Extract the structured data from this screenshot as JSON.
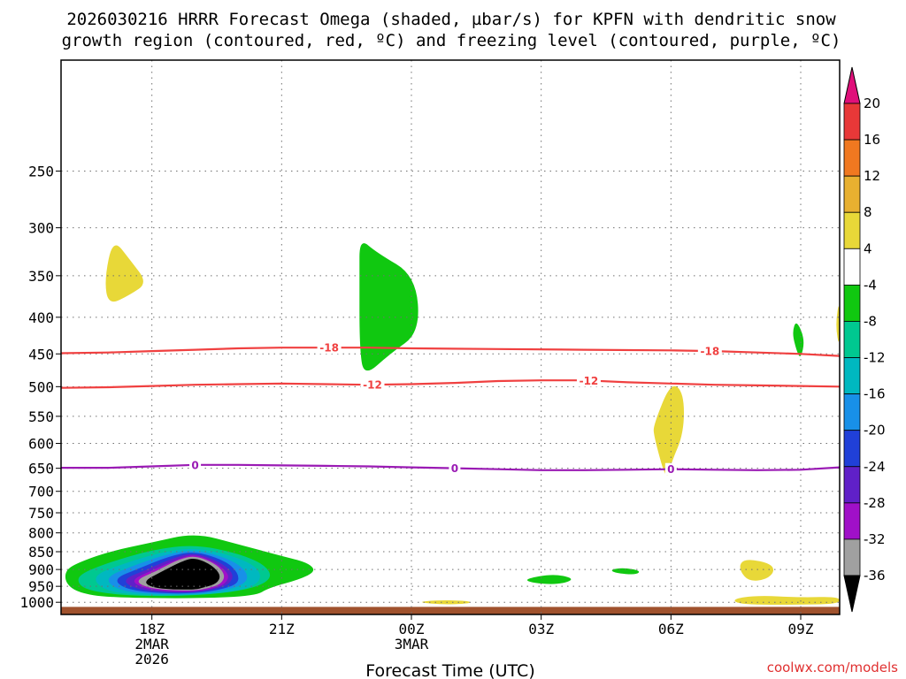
{
  "chart_data": {
    "type": "time-height cross section",
    "title_lines": [
      "2026030216 HRRR Forecast Omega (shaded, µbar/s) for KPFN with dendritic snow",
      "growth region (contoured, red, ºC) and freezing level (contoured, purple, ºC)"
    ],
    "xlabel": "Forecast Time (UTC)",
    "credit": "coolwx.com/models",
    "x_range_hours": [
      15.9,
      33.9
    ],
    "x_ticks": [
      {
        "hour": 18,
        "lines": [
          "18Z",
          "2MAR",
          "2026"
        ]
      },
      {
        "hour": 21,
        "lines": [
          "21Z"
        ]
      },
      {
        "hour": 24,
        "lines": [
          "00Z",
          "3MAR"
        ]
      },
      {
        "hour": 27,
        "lines": [
          "03Z"
        ]
      },
      {
        "hour": 30,
        "lines": [
          "06Z"
        ]
      },
      {
        "hour": 33,
        "lines": [
          "09Z"
        ]
      }
    ],
    "y_scale": "log",
    "y_range_hpa": [
      1040,
      175
    ],
    "y_ticks": [
      "250",
      "300",
      "350",
      "400",
      "450",
      "500",
      "550",
      "600",
      "650",
      "700",
      "750",
      "800",
      "850",
      "900",
      "950",
      "1000"
    ],
    "grid": true,
    "surface_pressure_hpa": 1015,
    "surface_color": "#a0522d",
    "contours": [
      {
        "name": "dendritic-18",
        "label": "-18",
        "color": "#f04040",
        "points": [
          [
            15.9,
            449
          ],
          [
            17,
            448
          ],
          [
            18,
            446
          ],
          [
            19,
            444
          ],
          [
            20,
            442
          ],
          [
            21,
            441
          ],
          [
            22,
            441
          ],
          [
            23,
            441
          ],
          [
            24,
            442
          ],
          [
            26,
            443
          ],
          [
            28,
            444
          ],
          [
            30,
            445
          ],
          [
            31,
            446
          ],
          [
            32,
            448
          ],
          [
            33,
            450
          ],
          [
            33.9,
            453
          ]
        ],
        "label_hours": [
          22.1,
          30.9
        ]
      },
      {
        "name": "dendritic-12",
        "label": "-12",
        "color": "#f04040",
        "points": [
          [
            15.9,
            502
          ],
          [
            17,
            501
          ],
          [
            18,
            499
          ],
          [
            19,
            497
          ],
          [
            20,
            496
          ],
          [
            21,
            495
          ],
          [
            22,
            496
          ],
          [
            23,
            497
          ],
          [
            24,
            496
          ],
          [
            25,
            494
          ],
          [
            26,
            491
          ],
          [
            27,
            490
          ],
          [
            28,
            490
          ],
          [
            29,
            493
          ],
          [
            30,
            495
          ],
          [
            31,
            497
          ],
          [
            32,
            498
          ],
          [
            33,
            499
          ],
          [
            33.9,
            500
          ]
        ],
        "label_hours": [
          23.1,
          28.1
        ]
      },
      {
        "name": "freezing-level-0",
        "label": "0",
        "color": "#9a1ab4",
        "points": [
          [
            15.9,
            649
          ],
          [
            17,
            649
          ],
          [
            18,
            646
          ],
          [
            19,
            643
          ],
          [
            20,
            643
          ],
          [
            21,
            644
          ],
          [
            22,
            645
          ],
          [
            23,
            646
          ],
          [
            24,
            648
          ],
          [
            25,
            650
          ],
          [
            26,
            652
          ],
          [
            27,
            654
          ],
          [
            28,
            654
          ],
          [
            29,
            653
          ],
          [
            30,
            652
          ],
          [
            31,
            653
          ],
          [
            32,
            654
          ],
          [
            33,
            653
          ],
          [
            33.9,
            648
          ]
        ],
        "label_hours": [
          19.0,
          25.0,
          30.0
        ]
      }
    ],
    "colorbar": {
      "labels": [
        "20",
        "16",
        "12",
        "8",
        "4",
        "-4",
        "-8",
        "-12",
        "-16",
        "-20",
        "-24",
        "-28",
        "-32",
        "-36"
      ],
      "bins": [
        {
          "range": [
            16,
            20
          ],
          "color": "#e83838"
        },
        {
          "range": [
            12,
            16
          ],
          "color": "#f07820"
        },
        {
          "range": [
            8,
            12
          ],
          "color": "#e8b030"
        },
        {
          "range": [
            4,
            8
          ],
          "color": "#e8d838"
        },
        {
          "range": [
            -4,
            4
          ],
          "color": "#ffffff"
        },
        {
          "range": [
            -8,
            -4
          ],
          "color": "#10c810"
        },
        {
          "range": [
            -12,
            -8
          ],
          "color": "#00c890"
        },
        {
          "range": [
            -16,
            -12
          ],
          "color": "#00b8c0"
        },
        {
          "range": [
            -20,
            -16
          ],
          "color": "#1890e8"
        },
        {
          "range": [
            -24,
            -20
          ],
          "color": "#2040d8"
        },
        {
          "range": [
            -28,
            -24
          ],
          "color": "#6020c8"
        },
        {
          "range": [
            -32,
            -28
          ],
          "color": "#a010c8"
        },
        {
          "range": [
            -36,
            -32
          ],
          "color": "#a0a0a0"
        }
      ],
      "above_color": "#e0107a",
      "below_color": "#000000"
    },
    "omega_regions": [
      {
        "name": "omega-yellow-350",
        "color": "#e8d838",
        "points": [
          [
            17.1,
            310
          ],
          [
            17.5,
            333
          ],
          [
            17.9,
            358
          ],
          [
            17.5,
            372
          ],
          [
            17.0,
            385
          ],
          [
            16.9,
            355
          ]
        ]
      },
      {
        "name": "omega-green-400",
        "color": "#10c810",
        "points": [
          [
            22.8,
            310
          ],
          [
            23.2,
            325
          ],
          [
            24.1,
            350
          ],
          [
            24.2,
            420
          ],
          [
            23.5,
            450
          ],
          [
            22.9,
            485
          ],
          [
            22.8,
            440
          ],
          [
            22.8,
            350
          ]
        ]
      },
      {
        "name": "omega-green-420-right",
        "color": "#10c810",
        "points": [
          [
            32.9,
            403
          ],
          [
            33.1,
            430
          ],
          [
            33.0,
            458
          ],
          [
            32.9,
            445
          ],
          [
            32.8,
            420
          ]
        ]
      },
      {
        "name": "omega-yellow-410-edge",
        "color": "#e8d838",
        "points": [
          [
            33.9,
            375
          ],
          [
            33.8,
            410
          ],
          [
            33.9,
            445
          ]
        ]
      },
      {
        "name": "omega-yellow-580",
        "color": "#e8d838",
        "points": [
          [
            30.0,
            492
          ],
          [
            30.3,
            510
          ],
          [
            30.3,
            580
          ],
          [
            30.0,
            640
          ],
          [
            29.9,
            680
          ],
          [
            29.6,
            585
          ],
          [
            29.6,
            565
          ]
        ]
      },
      {
        "name": "omega-green-outer",
        "color": "#10c810",
        "points": [
          [
            16.0,
            902
          ],
          [
            16.3,
            880
          ],
          [
            17.0,
            850
          ],
          [
            18.0,
            825
          ],
          [
            19.0,
            800
          ],
          [
            20.0,
            830
          ],
          [
            21.0,
            862
          ],
          [
            21.6,
            880
          ],
          [
            21.8,
            905
          ],
          [
            21.4,
            930
          ],
          [
            20.7,
            955
          ],
          [
            20.4,
            980
          ],
          [
            19.0,
            988
          ],
          [
            17.0,
            985
          ],
          [
            16.3,
            970
          ],
          [
            16.0,
            940
          ]
        ]
      },
      {
        "name": "omega-teal",
        "color": "#00c890",
        "points": [
          [
            16.3,
            915
          ],
          [
            17.0,
            880
          ],
          [
            18.0,
            845
          ],
          [
            19.0,
            830
          ],
          [
            20.0,
            855
          ],
          [
            20.6,
            885
          ],
          [
            20.8,
            925
          ],
          [
            20.3,
            960
          ],
          [
            19.0,
            980
          ],
          [
            17.5,
            980
          ],
          [
            16.6,
            965
          ],
          [
            16.3,
            945
          ]
        ]
      },
      {
        "name": "omega-cyan",
        "color": "#00b8c0",
        "points": [
          [
            16.6,
            920
          ],
          [
            17.3,
            885
          ],
          [
            18.2,
            852
          ],
          [
            19.0,
            838
          ],
          [
            20.0,
            865
          ],
          [
            20.5,
            900
          ],
          [
            20.5,
            940
          ],
          [
            20.0,
            965
          ],
          [
            19.0,
            978
          ],
          [
            17.8,
            978
          ],
          [
            16.9,
            965
          ]
        ]
      },
      {
        "name": "omega-blue",
        "color": "#1890e8",
        "points": [
          [
            16.9,
            925
          ],
          [
            17.5,
            892
          ],
          [
            18.3,
            858
          ],
          [
            19.0,
            843
          ],
          [
            19.8,
            870
          ],
          [
            20.2,
            905
          ],
          [
            20.2,
            940
          ],
          [
            19.7,
            963
          ],
          [
            19.0,
            975
          ],
          [
            18.0,
            975
          ],
          [
            17.2,
            962
          ]
        ]
      },
      {
        "name": "omega-darkblue",
        "color": "#2040d8",
        "points": [
          [
            17.1,
            928
          ],
          [
            17.7,
            897
          ],
          [
            18.4,
            862
          ],
          [
            19.0,
            848
          ],
          [
            19.7,
            875
          ],
          [
            20.0,
            910
          ],
          [
            20.0,
            942
          ],
          [
            19.6,
            960
          ],
          [
            19.0,
            972
          ],
          [
            18.2,
            972
          ],
          [
            17.4,
            960
          ]
        ]
      },
      {
        "name": "omega-violet",
        "color": "#6020c8",
        "points": [
          [
            17.3,
            930
          ],
          [
            17.9,
            900
          ],
          [
            18.5,
            866
          ],
          [
            19.0,
            852
          ],
          [
            19.6,
            880
          ],
          [
            19.9,
            913
          ],
          [
            19.8,
            943
          ],
          [
            19.5,
            958
          ],
          [
            19.0,
            969
          ],
          [
            18.3,
            969
          ],
          [
            17.6,
            958
          ]
        ]
      },
      {
        "name": "omega-purple",
        "color": "#a010c8",
        "points": [
          [
            17.5,
            932
          ],
          [
            18.0,
            903
          ],
          [
            18.6,
            870
          ],
          [
            19.0,
            856
          ],
          [
            19.5,
            882
          ],
          [
            19.8,
            915
          ],
          [
            19.7,
            943
          ],
          [
            19.4,
            957
          ],
          [
            19.0,
            966
          ],
          [
            18.4,
            966
          ],
          [
            17.8,
            956
          ]
        ]
      },
      {
        "name": "omega-gray",
        "color": "#a0a0a0",
        "points": [
          [
            17.6,
            933
          ],
          [
            18.1,
            905
          ],
          [
            18.6,
            872
          ],
          [
            19.0,
            860
          ],
          [
            19.5,
            885
          ],
          [
            19.7,
            917
          ],
          [
            19.6,
            943
          ],
          [
            19.3,
            956
          ],
          [
            19.0,
            963
          ],
          [
            18.5,
            963
          ],
          [
            17.9,
            955
          ]
        ]
      },
      {
        "name": "omega-black",
        "color": "#000000",
        "points": [
          [
            17.8,
            935
          ],
          [
            18.2,
            908
          ],
          [
            18.7,
            876
          ],
          [
            19.0,
            866
          ],
          [
            19.4,
            888
          ],
          [
            19.6,
            918
          ],
          [
            19.5,
            942
          ],
          [
            19.2,
            954
          ],
          [
            19.0,
            960
          ],
          [
            18.5,
            960
          ],
          [
            18.0,
            954
          ]
        ]
      },
      {
        "name": "omega-yellow-1000a",
        "color": "#e8d838",
        "points": [
          [
            24.1,
            1000
          ],
          [
            24.6,
            993
          ],
          [
            25.3,
            995
          ],
          [
            25.4,
            1003
          ],
          [
            24.8,
            1008
          ]
        ]
      },
      {
        "name": "omega-green-925a",
        "color": "#10c810",
        "points": [
          [
            26.6,
            928
          ],
          [
            27.3,
            912
          ],
          [
            27.8,
            928
          ],
          [
            27.4,
            945
          ],
          [
            26.8,
            940
          ]
        ]
      },
      {
        "name": "omega-green-905b",
        "color": "#10c810",
        "points": [
          [
            28.6,
            900
          ],
          [
            28.9,
            895
          ],
          [
            29.3,
            903
          ],
          [
            29.2,
            916
          ],
          [
            28.7,
            910
          ]
        ]
      },
      {
        "name": "omega-yellow-900",
        "color": "#e8d838",
        "points": [
          [
            31.6,
            880
          ],
          [
            31.8,
            870
          ],
          [
            32.3,
            883
          ],
          [
            32.4,
            905
          ],
          [
            32.2,
            930
          ],
          [
            31.8,
            935
          ],
          [
            31.6,
            905
          ]
        ]
      },
      {
        "name": "omega-yellow-1000b",
        "color": "#e8d838",
        "points": [
          [
            31.4,
            990
          ],
          [
            32.0,
            978
          ],
          [
            33.0,
            985
          ],
          [
            33.9,
            982
          ],
          [
            33.9,
            1005
          ],
          [
            33.0,
            1008
          ],
          [
            31.6,
            1008
          ]
        ]
      }
    ]
  }
}
